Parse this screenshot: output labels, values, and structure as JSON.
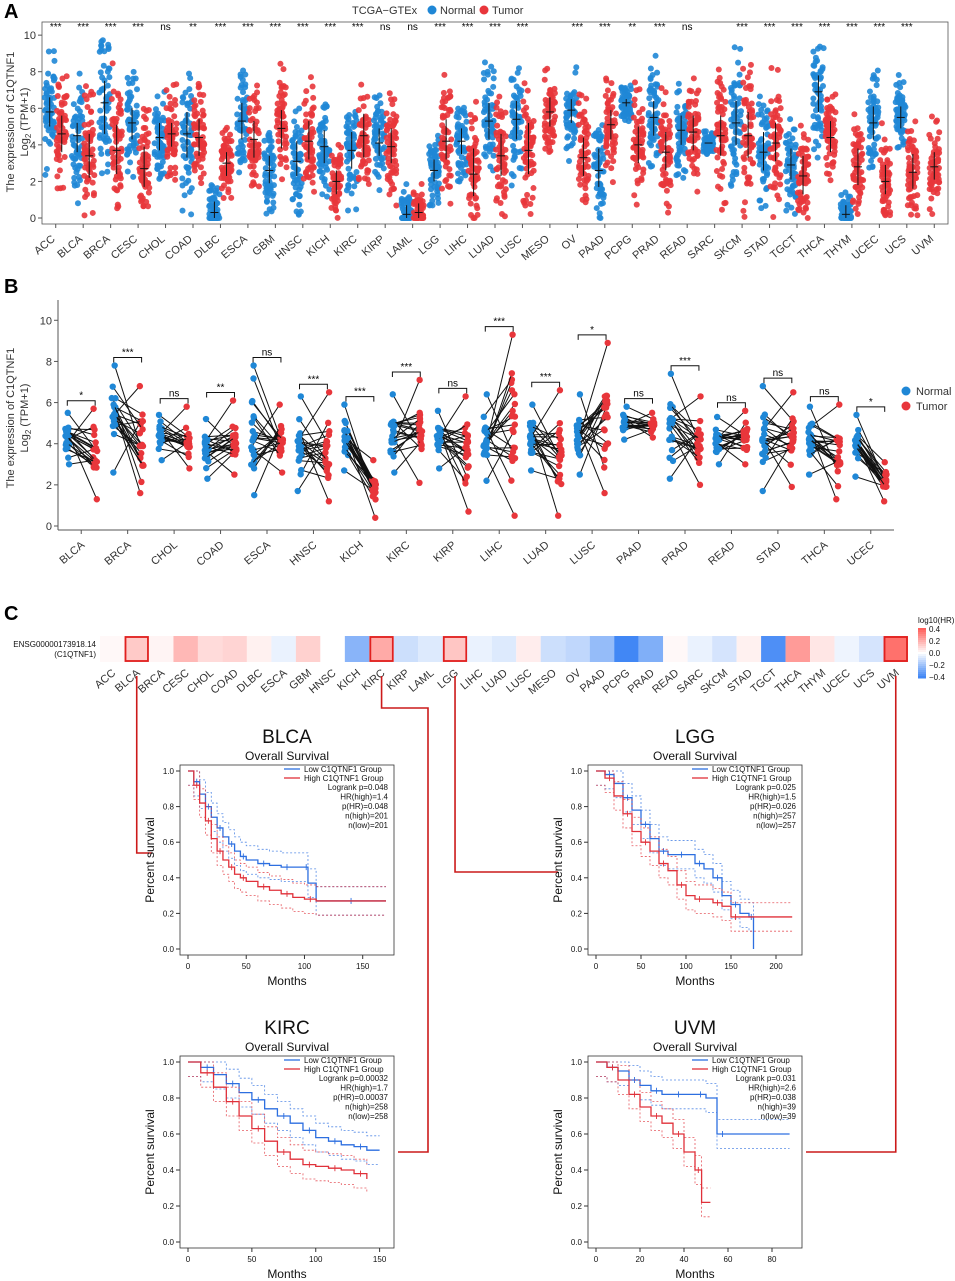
{
  "panels": {
    "a": {
      "letter": "A",
      "legend_title": "TCGA−GTEx",
      "normal_label": "Normal",
      "tumor_label": "Tumor",
      "ylabel_line1": "The expression of C1QTNF1",
      "ylabel_line2_prefix": "Log",
      "ylabel_line2_sub": "2",
      "ylabel_line2_suffix": " (TPM+1)"
    },
    "b": {
      "letter": "B",
      "normal_label": "Normal",
      "tumor_label": "Tumor",
      "ylabel_line1": "The expression of C1QTNF1",
      "ylabel_line2_prefix": "Log",
      "ylabel_line2_sub": "2",
      "ylabel_line2_suffix": " (TPM+1)"
    },
    "c": {
      "letter": "C",
      "heatmap_row_line1": "ENSG00000173918.14",
      "heatmap_row_line2": "(C1QTNF1)",
      "scale_title": "log10(HR)"
    }
  },
  "colors": {
    "normal": "#1f87d6",
    "tumor": "#e8363b",
    "km_low": "#2d6fe0",
    "km_high": "#e0313a",
    "connector": "#cc1a1a"
  },
  "chart_data": [
    {
      "id": "A",
      "type": "scatter",
      "title": "",
      "xlabel": "",
      "ylabel": "The expression of C1QTNF1 Log2 (TPM+1)",
      "ylim": [
        0,
        10.5
      ],
      "yticks": [
        0,
        2,
        4,
        6,
        8,
        10
      ],
      "legend": {
        "title": "TCGA−GTEx",
        "entries": [
          "Normal",
          "Tumor"
        ],
        "placement": "top-center"
      },
      "categories": [
        "ACC",
        "BLCA",
        "BRCA",
        "CESC",
        "CHOL",
        "COAD",
        "DLBC",
        "ESCA",
        "GBM",
        "HNSC",
        "KICH",
        "KIRC",
        "KIRP",
        "LAML",
        "LGG",
        "LIHC",
        "LUAD",
        "LUSC",
        "MESO",
        "OV",
        "PAAD",
        "PCPG",
        "PRAD",
        "READ",
        "SARC",
        "SKCM",
        "STAD",
        "TGCT",
        "THCA",
        "THYM",
        "UCEC",
        "UCS",
        "UVM"
      ],
      "significance": [
        "***",
        "***",
        "***",
        "***",
        "ns",
        "**",
        "***",
        "***",
        "***",
        "***",
        "***",
        "***",
        "ns",
        "ns",
        "***",
        "***",
        "***",
        "***",
        "",
        "***",
        "***",
        "**",
        "***",
        "ns",
        "",
        "***",
        "***",
        "***",
        "***",
        "***",
        "***",
        "***",
        ""
      ],
      "series": [
        {
          "name": "Normal",
          "median": [
            5.8,
            4.5,
            6.3,
            5.2,
            4.4,
            4.6,
            0.3,
            5.3,
            2.6,
            3.1,
            3.9,
            3.7,
            4.1,
            0.2,
            2.6,
            4.2,
            5.3,
            5.4,
            null,
            5.9,
            2.6,
            6.3,
            5.5,
            4.8,
            4.1,
            5.2,
            3.6,
            2.9,
            6.9,
            0.2,
            5.2,
            5.5,
            null
          ],
          "q1": [
            5.0,
            3.6,
            4.6,
            4.3,
            3.7,
            3.3,
            0.0,
            4.3,
            1.9,
            2.3,
            3.0,
            2.7,
            3.4,
            0.0,
            2.0,
            3.5,
            4.3,
            4.3,
            null,
            5.2,
            1.7,
            6.1,
            4.5,
            4.0,
            4.1,
            4.0,
            2.6,
            2.1,
            5.8,
            0.0,
            4.3,
            4.9,
            null
          ],
          "q3": [
            6.6,
            5.2,
            7.5,
            6.0,
            5.2,
            5.8,
            0.9,
            6.3,
            3.4,
            4.2,
            4.8,
            4.7,
            4.9,
            0.7,
            3.2,
            4.9,
            6.3,
            6.4,
            null,
            6.5,
            3.8,
            6.5,
            6.4,
            5.6,
            4.1,
            6.4,
            4.7,
            3.8,
            7.8,
            0.7,
            6.1,
            6.1,
            null
          ]
        },
        {
          "name": "Tumor",
          "median": [
            4.6,
            3.4,
            3.7,
            2.7,
            4.6,
            4.4,
            3.0,
            4.3,
            4.9,
            4.2,
            2.0,
            4.5,
            3.9,
            0.3,
            4.2,
            2.4,
            3.4,
            3.7,
            5.8,
            3.3,
            5.1,
            4.0,
            3.6,
            4.7,
            4.5,
            4.5,
            4.1,
            2.3,
            4.4,
            2.8,
            2.0,
            2.5,
            2.8
          ],
          "q1": [
            3.6,
            2.2,
            2.4,
            1.7,
            3.9,
            3.4,
            2.3,
            3.3,
            3.8,
            3.2,
            1.3,
            3.3,
            3.0,
            0.0,
            3.2,
            1.2,
            2.3,
            2.4,
            5.0,
            2.3,
            4.3,
            3.0,
            2.6,
            3.7,
            3.4,
            3.3,
            3.1,
            1.3,
            3.6,
            1.8,
            1.3,
            1.6,
            2.1
          ],
          "q3": [
            5.6,
            4.6,
            5.1,
            3.9,
            5.2,
            5.4,
            3.6,
            5.3,
            5.9,
            5.3,
            2.6,
            5.7,
            4.9,
            0.8,
            5.4,
            3.8,
            4.6,
            5.2,
            6.6,
            4.4,
            5.9,
            5.0,
            4.7,
            5.6,
            5.6,
            5.8,
            5.2,
            3.4,
            5.3,
            3.8,
            2.9,
            3.5,
            3.6
          ]
        }
      ]
    },
    {
      "id": "B",
      "type": "scatter",
      "title": "",
      "xlabel": "",
      "ylabel": "The expression of C1QTNF1 Log2 (TPM+1)",
      "ylim": [
        0,
        10.5
      ],
      "yticks": [
        0,
        2,
        4,
        6,
        8,
        10
      ],
      "legend": {
        "entries": [
          "Normal",
          "Tumor"
        ],
        "placement": "right"
      },
      "categories": [
        "BLCA",
        "BRCA",
        "CHOL",
        "COAD",
        "ESCA",
        "HNSC",
        "KICH",
        "KIRC",
        "KIRP",
        "LIHC",
        "LUAD",
        "LUSC",
        "PAAD",
        "PRAD",
        "READ",
        "STAD",
        "THCA",
        "UCEC"
      ],
      "significance": [
        "*",
        "***",
        "ns",
        "**",
        "ns",
        "***",
        "***",
        "***",
        "ns",
        "***",
        "***",
        "*",
        "ns",
        "***",
        "ns",
        "ns",
        "ns",
        "*"
      ],
      "series": [
        {
          "name": "Normal",
          "median": [
            4.1,
            4.8,
            4.5,
            3.6,
            4.1,
            3.5,
            4.0,
            4.3,
            4.2,
            4.2,
            4.2,
            4.6,
            5.0,
            4.7,
            4.3,
            4.0,
            4.5,
            3.3
          ],
          "min": [
            3.0,
            2.6,
            3.2,
            2.3,
            1.5,
            1.7,
            2.7,
            2.6,
            2.8,
            2.2,
            2.7,
            2.5,
            4.2,
            2.3,
            3.0,
            1.7,
            2.5,
            2.4
          ],
          "max": [
            5.5,
            7.8,
            5.4,
            5.2,
            7.8,
            6.3,
            5.9,
            6.4,
            5.6,
            6.4,
            5.9,
            6.4,
            5.8,
            7.4,
            5.3,
            6.8,
            5.8,
            5.4
          ]
        },
        {
          "name": "Tumor",
          "median": [
            3.6,
            3.8,
            3.9,
            4.2,
            3.9,
            4.4,
            2.2,
            4.8,
            3.7,
            3.5,
            3.8,
            5.0,
            4.8,
            4.0,
            4.4,
            4.4,
            4.3,
            2.1
          ],
          "min": [
            1.3,
            1.6,
            2.8,
            2.5,
            2.6,
            1.2,
            0.4,
            2.1,
            0.7,
            0.5,
            0.5,
            1.6,
            4.3,
            2.0,
            3.0,
            1.9,
            1.3,
            1.2
          ],
          "max": [
            5.7,
            6.8,
            5.8,
            6.1,
            5.9,
            6.5,
            3.2,
            7.1,
            6.3,
            9.3,
            6.6,
            8.9,
            5.5,
            6.3,
            5.6,
            6.5,
            5.9,
            3.1
          ]
        }
      ]
    },
    {
      "id": "C",
      "type": "heatmap",
      "title": "",
      "xlabel": "",
      "ylabel": "",
      "rows": [
        "ENSG00000173918.14 (C1QTNF1)"
      ],
      "categories": [
        "ACC",
        "BLCA",
        "BRCA",
        "CESC",
        "CHOL",
        "COAD",
        "DLBC",
        "ESCA",
        "GBM",
        "HNSC",
        "KICH",
        "KIRC",
        "KIRP",
        "LAML",
        "LGG",
        "LIHC",
        "LUAD",
        "LUSC",
        "MESO",
        "OV",
        "PAAD",
        "PCPG",
        "PRAD",
        "READ",
        "SARC",
        "SKCM",
        "STAD",
        "TGCT",
        "THCA",
        "THYM",
        "UCEC",
        "UCS",
        "UVM"
      ],
      "values": [
        0.02,
        0.15,
        0.03,
        0.2,
        0.1,
        0.12,
        0.04,
        -0.05,
        0.13,
        0.0,
        -0.28,
        0.24,
        -0.12,
        -0.08,
        0.16,
        -0.05,
        -0.08,
        0.05,
        -0.12,
        -0.15,
        -0.25,
        -0.45,
        -0.3,
        0.02,
        -0.05,
        -0.1,
        0.04,
        -0.42,
        0.28,
        0.07,
        -0.04,
        -0.1,
        0.4
      ],
      "highlighted": [
        "BLCA",
        "KIRC",
        "LGG",
        "UVM"
      ],
      "legend": {
        "title": "log10(HR)",
        "ticks": [
          "0.4",
          "0.2",
          "0.0",
          "−0.2",
          "−0.4"
        ],
        "placement": "top-right"
      }
    },
    {
      "id": "C-BLCA",
      "type": "line",
      "title": "BLCA",
      "subtitle": "Overall Survival",
      "xlabel": "Months",
      "ylabel": "Percent survival",
      "xlim": [
        0,
        170
      ],
      "ylim": [
        0,
        1.0
      ],
      "xticks": [
        "0",
        "50",
        "100",
        "150"
      ],
      "yticks": [
        "0.0",
        "0.2",
        "0.4",
        "0.6",
        "0.8",
        "1.0"
      ],
      "legend": [
        "Low C1QTNF1 Group",
        "High C1QTNF1 Group"
      ],
      "stats": [
        "Logrank p=0.048",
        "HR(high)=1.4",
        "p(HR)=0.048",
        "n(high)=201",
        "n(low)=201"
      ],
      "series": [
        {
          "name": "Low C1QTNF1 Group",
          "x": [
            0,
            5,
            10,
            15,
            20,
            25,
            30,
            35,
            40,
            45,
            50,
            60,
            70,
            80,
            90,
            100,
            103,
            110,
            170
          ],
          "y": [
            1,
            0.94,
            0.87,
            0.8,
            0.74,
            0.68,
            0.63,
            0.59,
            0.55,
            0.52,
            0.5,
            0.48,
            0.47,
            0.46,
            0.46,
            0.46,
            0.37,
            0.27,
            0.27
          ]
        },
        {
          "name": "High C1QTNF1 Group",
          "x": [
            0,
            5,
            10,
            15,
            20,
            25,
            30,
            35,
            40,
            45,
            50,
            60,
            70,
            80,
            90,
            100,
            110,
            170
          ],
          "y": [
            1,
            0.92,
            0.82,
            0.72,
            0.62,
            0.55,
            0.5,
            0.46,
            0.42,
            0.4,
            0.38,
            0.35,
            0.33,
            0.31,
            0.29,
            0.28,
            0.27,
            0.27
          ]
        }
      ]
    },
    {
      "id": "C-LGG",
      "type": "line",
      "title": "LGG",
      "subtitle": "Overall Survival",
      "xlabel": "Months",
      "ylabel": "Percent survival",
      "xlim": [
        0,
        220
      ],
      "ylim": [
        0,
        1.0
      ],
      "xticks": [
        "0",
        "50",
        "100",
        "150",
        "200"
      ],
      "yticks": [
        "0.0",
        "0.2",
        "0.4",
        "0.6",
        "0.8",
        "1.0"
      ],
      "legend": [
        "Low C1QTNF1 Group",
        "High C1QTNF1 Group"
      ],
      "stats": [
        "Logrank p=0.025",
        "HR(high)=1.5",
        "p(HR)=0.026",
        "n(high)=257",
        "n(low)=257"
      ],
      "series": [
        {
          "name": "Low C1QTNF1 Group",
          "x": [
            0,
            10,
            20,
            30,
            40,
            50,
            60,
            70,
            80,
            90,
            100,
            110,
            120,
            130,
            140,
            150,
            160,
            170,
            175
          ],
          "y": [
            1,
            0.98,
            0.93,
            0.85,
            0.78,
            0.7,
            0.62,
            0.55,
            0.53,
            0.53,
            0.53,
            0.48,
            0.45,
            0.4,
            0.3,
            0.25,
            0.2,
            0.18,
            0.0
          ]
        },
        {
          "name": "High C1QTNF1 Group",
          "x": [
            0,
            10,
            20,
            30,
            40,
            50,
            60,
            70,
            80,
            90,
            100,
            110,
            120,
            130,
            140,
            150,
            160,
            218
          ],
          "y": [
            1,
            0.96,
            0.86,
            0.76,
            0.66,
            0.6,
            0.55,
            0.48,
            0.44,
            0.36,
            0.3,
            0.28,
            0.28,
            0.26,
            0.24,
            0.18,
            0.18,
            0.18
          ]
        }
      ]
    },
    {
      "id": "C-KIRC",
      "type": "line",
      "title": "KIRC",
      "subtitle": "Overall Survival",
      "xlabel": "Months",
      "ylabel": "Percent survival",
      "xlim": [
        0,
        155
      ],
      "ylim": [
        0,
        1.0
      ],
      "xticks": [
        "0",
        "50",
        "100",
        "150"
      ],
      "yticks": [
        "0.0",
        "0.2",
        "0.4",
        "0.6",
        "0.8",
        "1.0"
      ],
      "legend": [
        "Low C1QTNF1 Group",
        "High C1QTNF1 Group"
      ],
      "stats": [
        "Logrank p=0.00032",
        "HR(high)=1.7",
        "p(HR)=0.00037",
        "n(high)=258",
        "n(low)=258"
      ],
      "series": [
        {
          "name": "Low C1QTNF1 Group",
          "x": [
            0,
            10,
            20,
            30,
            40,
            50,
            60,
            70,
            80,
            90,
            100,
            110,
            120,
            130,
            140,
            150
          ],
          "y": [
            1,
            0.97,
            0.93,
            0.88,
            0.83,
            0.79,
            0.74,
            0.7,
            0.66,
            0.62,
            0.58,
            0.56,
            0.54,
            0.53,
            0.51,
            0.51
          ]
        },
        {
          "name": "High C1QTNF1 Group",
          "x": [
            0,
            10,
            20,
            30,
            40,
            50,
            60,
            70,
            80,
            90,
            100,
            110,
            120,
            130,
            140
          ],
          "y": [
            1,
            0.94,
            0.86,
            0.78,
            0.7,
            0.63,
            0.56,
            0.5,
            0.46,
            0.43,
            0.42,
            0.41,
            0.4,
            0.38,
            0.35
          ]
        }
      ]
    },
    {
      "id": "C-UVM",
      "type": "line",
      "title": "UVM",
      "subtitle": "Overall Survival",
      "xlabel": "Months",
      "ylabel": "Percent survival",
      "xlim": [
        0,
        90
      ],
      "ylim": [
        0,
        1.0
      ],
      "xticks": [
        "0",
        "20",
        "40",
        "60",
        "80"
      ],
      "yticks": [
        "0.0",
        "0.2",
        "0.4",
        "0.6",
        "0.8",
        "1.0"
      ],
      "legend": [
        "Low C1QTNF1 Group",
        "High C1QTNF1 Group"
      ],
      "stats": [
        "Logrank p=0.031",
        "HR(high)=2.6",
        "p(HR)=0.038",
        "n(high)=39",
        "n(low)=39"
      ],
      "series": [
        {
          "name": "Low C1QTNF1 Group",
          "x": [
            0,
            5,
            10,
            15,
            20,
            25,
            30,
            35,
            40,
            45,
            50,
            55,
            60,
            88
          ],
          "y": [
            1,
            0.97,
            0.95,
            0.9,
            0.87,
            0.84,
            0.82,
            0.82,
            0.82,
            0.82,
            0.8,
            0.6,
            0.6,
            0.6
          ]
        },
        {
          "name": "High C1QTNF1 Group",
          "x": [
            0,
            5,
            10,
            15,
            20,
            25,
            30,
            35,
            40,
            45,
            48,
            52
          ],
          "y": [
            1,
            0.97,
            0.9,
            0.82,
            0.75,
            0.7,
            0.66,
            0.6,
            0.5,
            0.4,
            0.22,
            0.22
          ]
        }
      ]
    }
  ]
}
